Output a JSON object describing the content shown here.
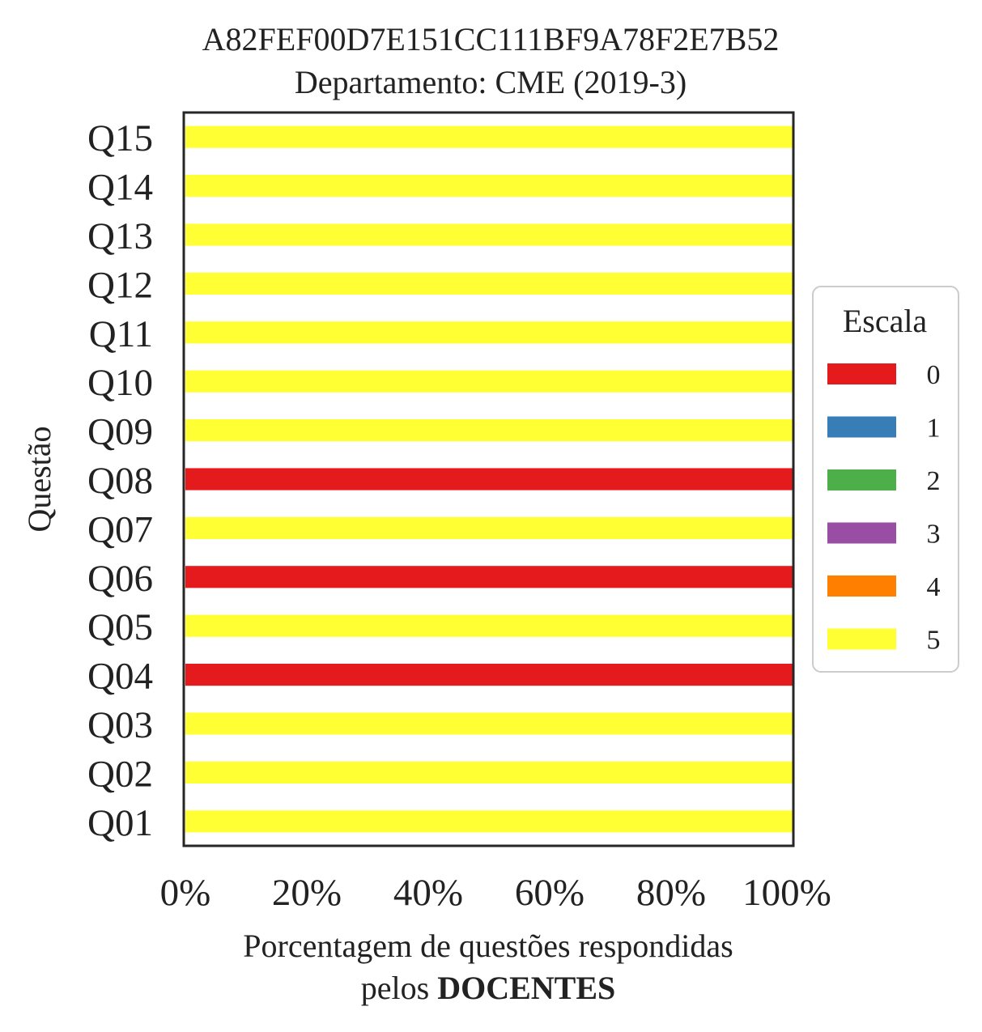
{
  "chart_data": {
    "type": "bar",
    "orientation": "horizontal",
    "stacked": true,
    "title": "A82FEF00D7E151CC111BF9A78F2E7B52",
    "subtitle": "Departamento: CME (2019-3)",
    "xlabel": "Porcentagem de questões respondidas",
    "xlabel_line2_prefix": "pelos ",
    "xlabel_line2_bold": "DOCENTES",
    "ylabel": "Questão",
    "xlim": [
      0,
      100
    ],
    "xticks": [
      0,
      20,
      40,
      60,
      80,
      100
    ],
    "xtick_labels": [
      "0%",
      "20%",
      "40%",
      "60%",
      "80%",
      "100%"
    ],
    "categories": [
      "Q01",
      "Q02",
      "Q03",
      "Q04",
      "Q05",
      "Q06",
      "Q07",
      "Q08",
      "Q09",
      "Q10",
      "Q11",
      "Q12",
      "Q13",
      "Q14",
      "Q15"
    ],
    "series": [
      {
        "name": "0",
        "color": "#e41a1c",
        "values": [
          0,
          0,
          0,
          100,
          0,
          100,
          0,
          100,
          0,
          0,
          0,
          0,
          0,
          0,
          0
        ]
      },
      {
        "name": "1",
        "color": "#377eb8",
        "values": [
          0,
          0,
          0,
          0,
          0,
          0,
          0,
          0,
          0,
          0,
          0,
          0,
          0,
          0,
          0
        ]
      },
      {
        "name": "2",
        "color": "#4daf4a",
        "values": [
          0,
          0,
          0,
          0,
          0,
          0,
          0,
          0,
          0,
          0,
          0,
          0,
          0,
          0,
          0
        ]
      },
      {
        "name": "3",
        "color": "#984ea3",
        "values": [
          0,
          0,
          0,
          0,
          0,
          0,
          0,
          0,
          0,
          0,
          0,
          0,
          0,
          0,
          0
        ]
      },
      {
        "name": "4",
        "color": "#ff7f00",
        "values": [
          0,
          0,
          0,
          0,
          0,
          0,
          0,
          0,
          0,
          0,
          0,
          0,
          0,
          0,
          0
        ]
      },
      {
        "name": "5",
        "color": "#ffff33",
        "values": [
          100,
          100,
          100,
          0,
          100,
          0,
          100,
          0,
          100,
          100,
          100,
          100,
          100,
          100,
          100
        ]
      }
    ],
    "legend": {
      "title": "Escala",
      "placement": "right"
    },
    "grid": false
  }
}
